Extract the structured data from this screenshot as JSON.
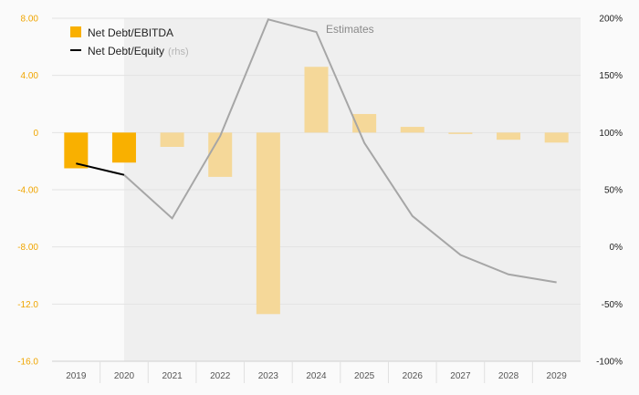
{
  "chart_data": {
    "type": "bar",
    "categories": [
      "2019",
      "2020",
      "2021",
      "2022",
      "2023",
      "2024",
      "2025",
      "2026",
      "2027",
      "2028",
      "2029"
    ],
    "series": [
      {
        "name": "Net Debt/EBITDA",
        "axis": "left",
        "type": "bar",
        "color": "#f9b000",
        "estimate_color": "#f5d899",
        "values": [
          -2.5,
          -2.1,
          -1.0,
          -3.1,
          -12.7,
          4.6,
          1.3,
          0.4,
          -0.1,
          -0.5,
          -0.7
        ]
      },
      {
        "name": "Net Debt/Equity",
        "axis": "right",
        "type": "line",
        "color": "#000000",
        "estimate_color": "#a6a6a6",
        "values": [
          73,
          63,
          25,
          97,
          199,
          188,
          91,
          27,
          -7,
          -24,
          -31
        ]
      }
    ],
    "legend_suffix": "(rhs)",
    "estimates_label": "Estimates",
    "estimates_start_category": "2020",
    "y_left": {
      "ylim": [
        -16,
        8
      ],
      "ticks": [
        "8.00",
        "4.00",
        "0",
        "-4.00",
        "-8.00",
        "-12.0",
        "-16.0"
      ],
      "tick_values": [
        8,
        4,
        0,
        -4,
        -8,
        -12,
        -16
      ]
    },
    "y_right": {
      "ylim": [
        -100,
        200
      ],
      "ticks": [
        "200%",
        "150%",
        "100%",
        "50%",
        "0%",
        "-50%",
        "-100%"
      ],
      "tick_values": [
        200,
        150,
        100,
        50,
        0,
        -50,
        -100
      ]
    },
    "legend_position": "top-left",
    "grid": true,
    "colors": {
      "background": "#fafafa",
      "estimates_background": "#efefef",
      "grid": "#e3e3e3",
      "left_ticks": "#f0a500",
      "right_ticks": "#222222"
    }
  }
}
